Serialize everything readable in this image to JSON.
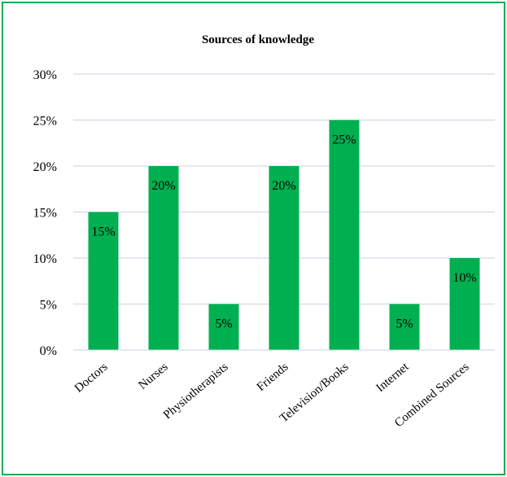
{
  "chart_data": {
    "type": "bar",
    "title": "Sources of knowledge",
    "categories": [
      "Doctors",
      "Nurses",
      "Physiotherapists",
      "Friends",
      "Television/Books",
      "Internet",
      "Combined Sources"
    ],
    "values": [
      15,
      20,
      5,
      20,
      25,
      5,
      10
    ],
    "data_labels": [
      "15%",
      "20%",
      "5%",
      "20%",
      "25%",
      "5%",
      "10%"
    ],
    "y_ticks": [
      "0%",
      "5%",
      "10%",
      "15%",
      "20%",
      "25%",
      "30%"
    ],
    "ylim": [
      0,
      30
    ],
    "grid": true,
    "legend": "none",
    "bar_color": "#00b050",
    "xlabel": "",
    "ylabel": ""
  }
}
